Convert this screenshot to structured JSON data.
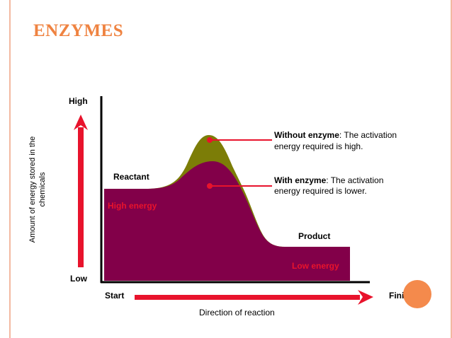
{
  "slide": {
    "title": "ENZYMES"
  },
  "colors": {
    "title": "#ef8341",
    "border": "#f3b9a1",
    "circle": "#f48a4c",
    "arrow": "#e8132c",
    "without_enzyme_fill": "#7c7d07",
    "with_enzyme_fill": "#820049",
    "axis": "#000000"
  },
  "diagram": {
    "y_axis_label_line1": "Amount of energy stored in the",
    "y_axis_label_line2": "chemicals",
    "high_label": "High",
    "low_label": "Low",
    "start_label": "Start",
    "finish_label": "Finish",
    "x_axis_label": "Direction of reaction",
    "reactant_label": "Reactant",
    "high_energy_label": "High energy",
    "product_label": "Product",
    "low_energy_label": "Low energy",
    "without_enzyme": {
      "bold": "Without enzyme",
      "rest": ": The activation",
      "line2": "energy required is high."
    },
    "with_enzyme": {
      "bold": "With enzyme",
      "rest": ": The activation",
      "line2": "energy required is lower."
    }
  }
}
